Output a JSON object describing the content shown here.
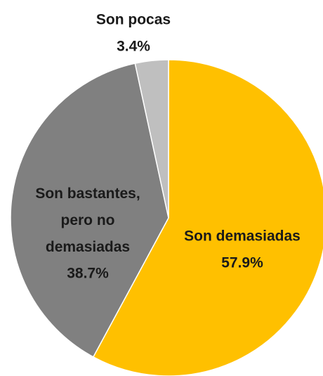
{
  "chart_data": {
    "type": "pie",
    "categories": [
      "Son demasiadas",
      "Son bastantes, pero no demasiadas",
      "Son pocas"
    ],
    "values": [
      57.9,
      38.7,
      3.4
    ],
    "value_labels": [
      "57.9%",
      "38.7%",
      "3.4%"
    ],
    "colors": [
      "#FFC000",
      "#808080",
      "#BFBFBF"
    ]
  }
}
